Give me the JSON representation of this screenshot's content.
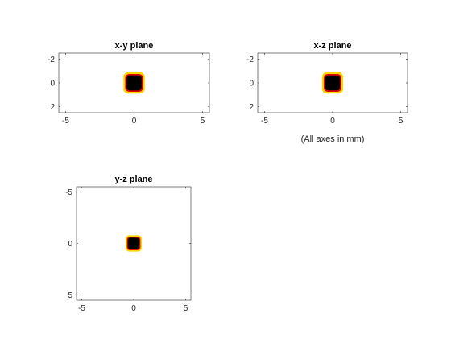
{
  "figure": {
    "note": "(All axes in mm)"
  },
  "chart_data": [
    {
      "type": "heatmap",
      "title": "x-y plane",
      "xlabel": "",
      "ylabel": "",
      "xlim": [
        -5.5,
        5.5
      ],
      "ylim": [
        -2.5,
        2.5
      ],
      "y_reversed": true,
      "xticks": [
        -5,
        0,
        5
      ],
      "yticks": [
        -2,
        0,
        2
      ],
      "xtick_labels": [
        "-5",
        "0",
        "5"
      ],
      "ytick_labels": [
        "-2",
        "0",
        "2"
      ],
      "spot": {
        "center": [
          0,
          0
        ],
        "core_radius": 0.55,
        "rim_radius": 0.65,
        "halo_radius": 0.78
      },
      "colormap": {
        "core": "#000000",
        "rim": "#e00000",
        "halo": "#ffd400",
        "background": "#ffffff"
      }
    },
    {
      "type": "heatmap",
      "title": "x-z plane",
      "xlabel": "",
      "ylabel": "",
      "xlim": [
        -5.5,
        5.5
      ],
      "ylim": [
        -2.5,
        2.5
      ],
      "y_reversed": true,
      "xticks": [
        -5,
        0,
        5
      ],
      "yticks": [
        -2,
        0,
        2
      ],
      "xtick_labels": [
        "-5",
        "0",
        "5"
      ],
      "ytick_labels": [
        "-2",
        "0",
        "2"
      ],
      "spot": {
        "center": [
          0,
          0
        ],
        "core_radius": 0.55,
        "rim_radius": 0.65,
        "halo_radius": 0.78
      },
      "colormap": {
        "core": "#000000",
        "rim": "#e00000",
        "halo": "#ffd400",
        "background": "#ffffff"
      }
    },
    {
      "type": "heatmap",
      "title": "y-z plane",
      "xlabel": "",
      "ylabel": "",
      "xlim": [
        -5.5,
        5.5
      ],
      "ylim": [
        -5.5,
        5.5
      ],
      "y_reversed": true,
      "xticks": [
        -5,
        0,
        5
      ],
      "yticks": [
        -5,
        0,
        5
      ],
      "xtick_labels": [
        "-5",
        "0",
        "5"
      ],
      "ytick_labels": [
        "-5",
        "0",
        "5"
      ],
      "spot": {
        "center": [
          0,
          0
        ],
        "core_radius": 0.55,
        "rim_radius": 0.65,
        "halo_radius": 0.78
      },
      "colormap": {
        "core": "#000000",
        "rim": "#e00000",
        "halo": "#ffd400",
        "background": "#ffffff"
      }
    }
  ]
}
